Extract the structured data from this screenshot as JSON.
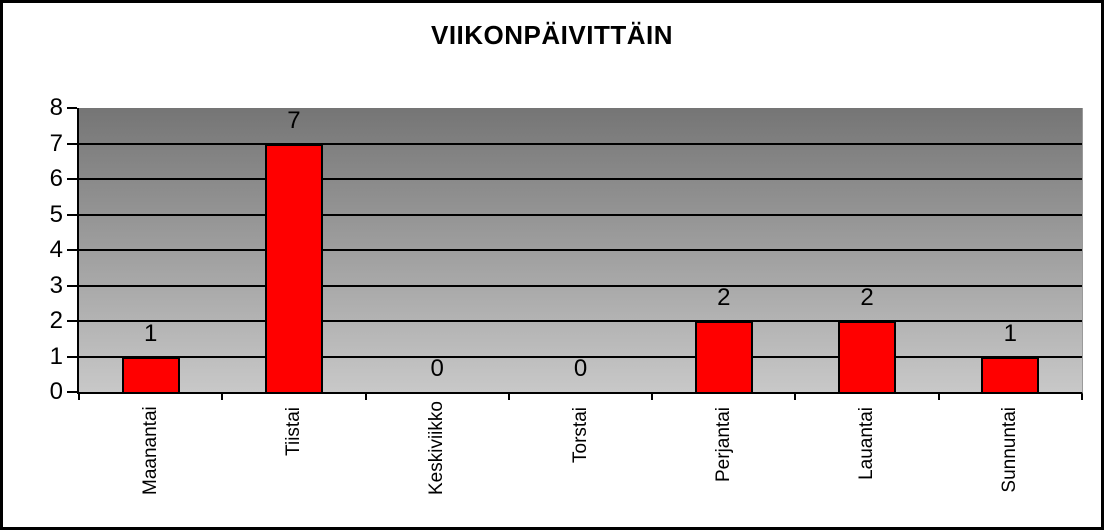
{
  "chart_data": {
    "type": "bar",
    "title": "VIIKONPÄIVITTÄIN",
    "categories": [
      "Maanantai",
      "Tiistai",
      "Keskiviikko",
      "Torstai",
      "Perjantai",
      "Lauantai",
      "Sunnuntai"
    ],
    "values": [
      1,
      7,
      0,
      0,
      2,
      2,
      1
    ],
    "data_labels": [
      "1",
      "7",
      "0",
      "0",
      "2",
      "2",
      "1"
    ],
    "xlabel": "",
    "ylabel": "",
    "ylim": [
      0,
      8
    ],
    "yticks": [
      "0",
      "1",
      "2",
      "3",
      "4",
      "5",
      "6",
      "7",
      "8"
    ],
    "grid": "horizontal",
    "legend": "none",
    "colors": {
      "bar_fill": "#ff0000",
      "bar_border": "#000000",
      "gridline": "#000000",
      "plot_bg_gradient_top": "#757575",
      "plot_bg_gradient_bottom": "#c8c8c8",
      "outer_border": "#000000",
      "text": "#000000",
      "page_bg": "#ffffff"
    }
  }
}
